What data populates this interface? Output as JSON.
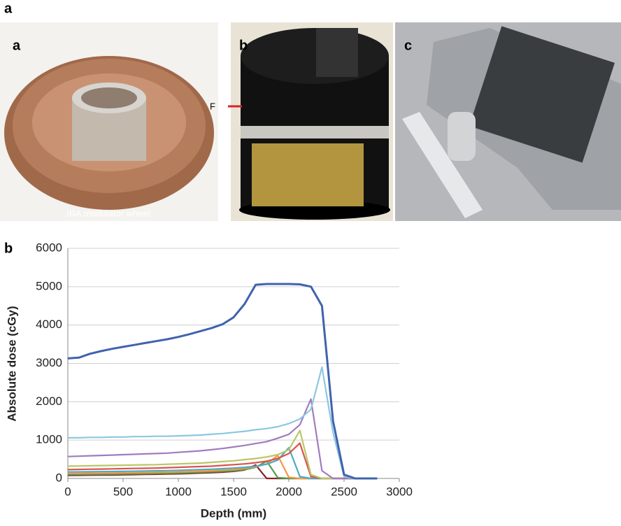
{
  "figure_label": "a",
  "photos": [
    {
      "label": "a",
      "caption": "IBA modulator wheel"
    },
    {
      "label": "b",
      "marker": "F"
    },
    {
      "label": "c"
    }
  ],
  "chart_label": "b",
  "chart_data": {
    "type": "line",
    "x_label": "Depth (mm)",
    "y_label": "Absolute dose (cGy)",
    "xlim": [
      0,
      3000
    ],
    "ylim": [
      0,
      6000
    ],
    "xticks": [
      0,
      500,
      1000,
      1500,
      2000,
      2500,
      3000
    ],
    "yticks": [
      0,
      1000,
      2000,
      3000,
      4000,
      5000,
      6000
    ],
    "grid": true,
    "x": [
      0,
      100,
      200,
      300,
      400,
      500,
      600,
      700,
      800,
      900,
      1000,
      1100,
      1200,
      1300,
      1400,
      1500,
      1600,
      1700,
      1800,
      1900,
      2000,
      2100,
      2200,
      2300,
      2400,
      2500,
      2600,
      2700,
      2800
    ],
    "series": [
      {
        "color": "#3f63ad",
        "values": [
          3130,
          3150,
          3250,
          3320,
          3380,
          3430,
          3480,
          3530,
          3580,
          3630,
          3690,
          3760,
          3840,
          3920,
          4020,
          4200,
          4550,
          5050,
          5070,
          5070,
          5070,
          5060,
          5000,
          4500,
          1500,
          100,
          0,
          0,
          0
        ]
      },
      {
        "color": "#8cc7e0",
        "values": [
          1060,
          1060,
          1070,
          1070,
          1080,
          1080,
          1090,
          1090,
          1100,
          1100,
          1110,
          1120,
          1130,
          1150,
          1170,
          1200,
          1230,
          1270,
          1300,
          1350,
          1430,
          1550,
          1800,
          2900,
          1200,
          50,
          0,
          0,
          0
        ]
      },
      {
        "color": "#a07cc0",
        "values": [
          570,
          580,
          590,
          600,
          610,
          620,
          630,
          640,
          650,
          660,
          680,
          700,
          720,
          750,
          780,
          820,
          860,
          910,
          960,
          1050,
          1150,
          1400,
          2070,
          200,
          0,
          0,
          0,
          0,
          0
        ]
      },
      {
        "color": "#b9c766",
        "values": [
          320,
          325,
          330,
          335,
          340,
          345,
          350,
          355,
          360,
          370,
          380,
          390,
          400,
          420,
          440,
          460,
          490,
          520,
          560,
          620,
          750,
          1250,
          100,
          0,
          0,
          0,
          0,
          0,
          0
        ]
      },
      {
        "color": "#d9534f",
        "values": [
          230,
          235,
          240,
          245,
          250,
          255,
          260,
          265,
          270,
          280,
          290,
          300,
          310,
          320,
          340,
          360,
          380,
          410,
          450,
          520,
          650,
          920,
          50,
          0,
          0,
          0,
          0,
          0,
          0
        ]
      },
      {
        "color": "#4bacc6",
        "values": [
          170,
          172,
          175,
          178,
          180,
          185,
          190,
          195,
          200,
          205,
          210,
          220,
          230,
          240,
          255,
          270,
          290,
          320,
          370,
          480,
          800,
          50,
          0,
          0,
          0,
          0,
          0,
          0,
          0
        ]
      },
      {
        "color": "#f79646",
        "values": [
          130,
          132,
          135,
          138,
          140,
          145,
          150,
          155,
          160,
          165,
          170,
          180,
          190,
          200,
          215,
          230,
          260,
          300,
          380,
          600,
          30,
          0,
          0,
          0,
          0,
          0,
          0,
          0,
          0
        ]
      },
      {
        "color": "#4f9d4f",
        "values": [
          100,
          102,
          105,
          108,
          110,
          115,
          120,
          125,
          130,
          135,
          140,
          150,
          160,
          170,
          185,
          200,
          230,
          290,
          450,
          20,
          0,
          0,
          0,
          0,
          0,
          0,
          0,
          0,
          0
        ]
      },
      {
        "color": "#8b2323",
        "values": [
          80,
          82,
          85,
          88,
          90,
          95,
          100,
          105,
          110,
          115,
          120,
          130,
          140,
          150,
          165,
          185,
          220,
          350,
          0,
          0,
          0,
          0,
          0,
          0,
          0,
          0,
          0,
          0,
          0
        ]
      }
    ]
  }
}
